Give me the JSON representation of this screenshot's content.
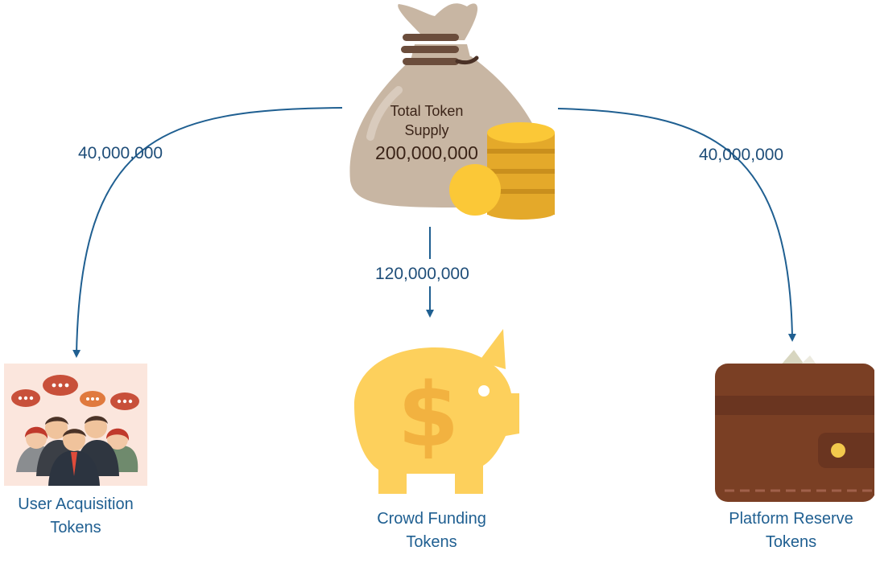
{
  "source": {
    "label_line1": "Total Token",
    "label_line2": "Supply",
    "amount": "200,000,000"
  },
  "flows": [
    {
      "amount": "40,000,000",
      "target": "User Acquisition Tokens"
    },
    {
      "amount": "120,000,000",
      "target": "Crowd Funding Tokens"
    },
    {
      "amount": "40,000,000",
      "target": "Platform Reserve Tokens"
    }
  ],
  "targets": [
    {
      "line1": "User Acquisition",
      "line2": "Tokens",
      "icon": "people-group-icon"
    },
    {
      "line1": "Crowd Funding",
      "line2": "Tokens",
      "icon": "piggy-bank-icon"
    },
    {
      "line1": "Platform Reserve",
      "line2": "Tokens",
      "icon": "wallet-icon"
    }
  ],
  "colors": {
    "arrow": "#1f5f91",
    "text": "#1f4e79",
    "bag": "#c8b6a3",
    "coins": "#f2b72a",
    "piggy": "#fdd05c",
    "wallet": "#7a3f24"
  }
}
